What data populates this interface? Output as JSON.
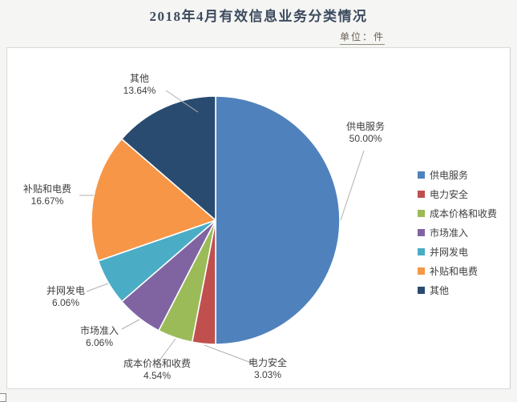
{
  "header": {
    "title": "2018年4月有效信息业务分类情况",
    "unit_label": "单位：件"
  },
  "colors": {
    "page_background": "#f5f5f3",
    "chart_background": "#ffffff",
    "chart_border": "#d9d9d9",
    "title_text": "#3c4a5e",
    "unit_text": "#6b6156",
    "label_text": "#3f3f3f",
    "leader_line": "#b0b0b0"
  },
  "chart_data": {
    "type": "pie",
    "title": "2018年4月有效信息业务分类情况",
    "unit": "件",
    "start_angle_deg": 0,
    "direction": "clockwise",
    "legend_position": "right",
    "labels_show": "category_and_percent",
    "slices": [
      {
        "label": "供电服务",
        "percent": 50.0,
        "percent_label": "50.00%",
        "color": "#4F81BD"
      },
      {
        "label": "电力安全",
        "percent": 3.03,
        "percent_label": "3.03%",
        "color": "#C0504D"
      },
      {
        "label": "成本价格和收费",
        "percent": 4.54,
        "percent_label": "4.54%",
        "color": "#9BBB59"
      },
      {
        "label": "市场准入",
        "percent": 6.06,
        "percent_label": "6.06%",
        "color": "#8064A2"
      },
      {
        "label": "并网发电",
        "percent": 6.06,
        "percent_label": "6.06%",
        "color": "#4BACC6"
      },
      {
        "label": "补贴和电费",
        "percent": 16.67,
        "percent_label": "16.67%",
        "color": "#F79646"
      },
      {
        "label": "其他",
        "percent": 13.64,
        "percent_label": "13.64%",
        "color": "#2A4B70"
      }
    ]
  }
}
